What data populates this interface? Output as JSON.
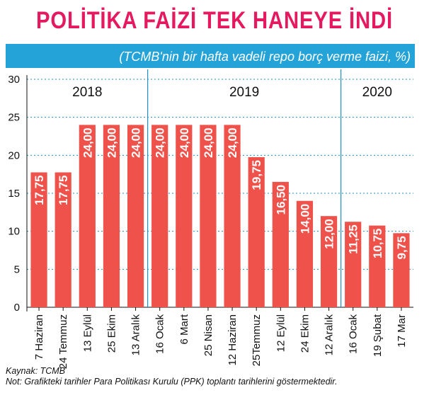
{
  "title": "POLİTİKA FAİZİ TEK HANEYE İNDİ",
  "subtitle": "(TCMB'nin bir hafta vadeli repo borç verme faizi, %)",
  "source": "Kaynak: TCMB",
  "note": "Not: Grafikteki tarihler Para Politikası Kurulu (PPK) toplantı tarihlerini göstermektedir.",
  "colors": {
    "bar": "#ef524a",
    "title": "#e5195f",
    "accent": "#24a3d8",
    "grid": "#1f8fc2"
  },
  "chart_data": {
    "type": "bar",
    "categories": [
      "7 Haziran",
      "24 Temmuz",
      "13 Eylül",
      "25 Ekim",
      "13 Aralık",
      "16 Ocak",
      "6 Mart",
      "25 Nisan",
      "12 Haziran",
      "25Temmuz",
      "12 Eylül",
      "24 Ekim",
      "12 Aralık",
      "16 Ocak",
      "19 Şubat",
      "17 Mar"
    ],
    "values": [
      17.75,
      17.75,
      24.0,
      24.0,
      24.0,
      24.0,
      24.0,
      24.0,
      24.0,
      19.75,
      16.5,
      14.0,
      12.0,
      11.25,
      10.75,
      9.75
    ],
    "data_labels": [
      "17,75",
      "17,75",
      "24,00",
      "24,00",
      "24,00",
      "24,00",
      "24,00",
      "24,00",
      "24,00",
      "19,75",
      "16,50",
      "14,00",
      "12,00",
      "11,25",
      "10,75",
      "9,75"
    ],
    "ylim": [
      0,
      30
    ],
    "yticks": [
      0,
      5,
      10,
      15,
      20,
      25,
      30
    ],
    "grid": true,
    "year_groups": [
      {
        "label": "2018",
        "start": 0,
        "end": 4
      },
      {
        "label": "2019",
        "start": 5,
        "end": 12
      },
      {
        "label": "2020",
        "start": 13,
        "end": 15
      }
    ]
  }
}
